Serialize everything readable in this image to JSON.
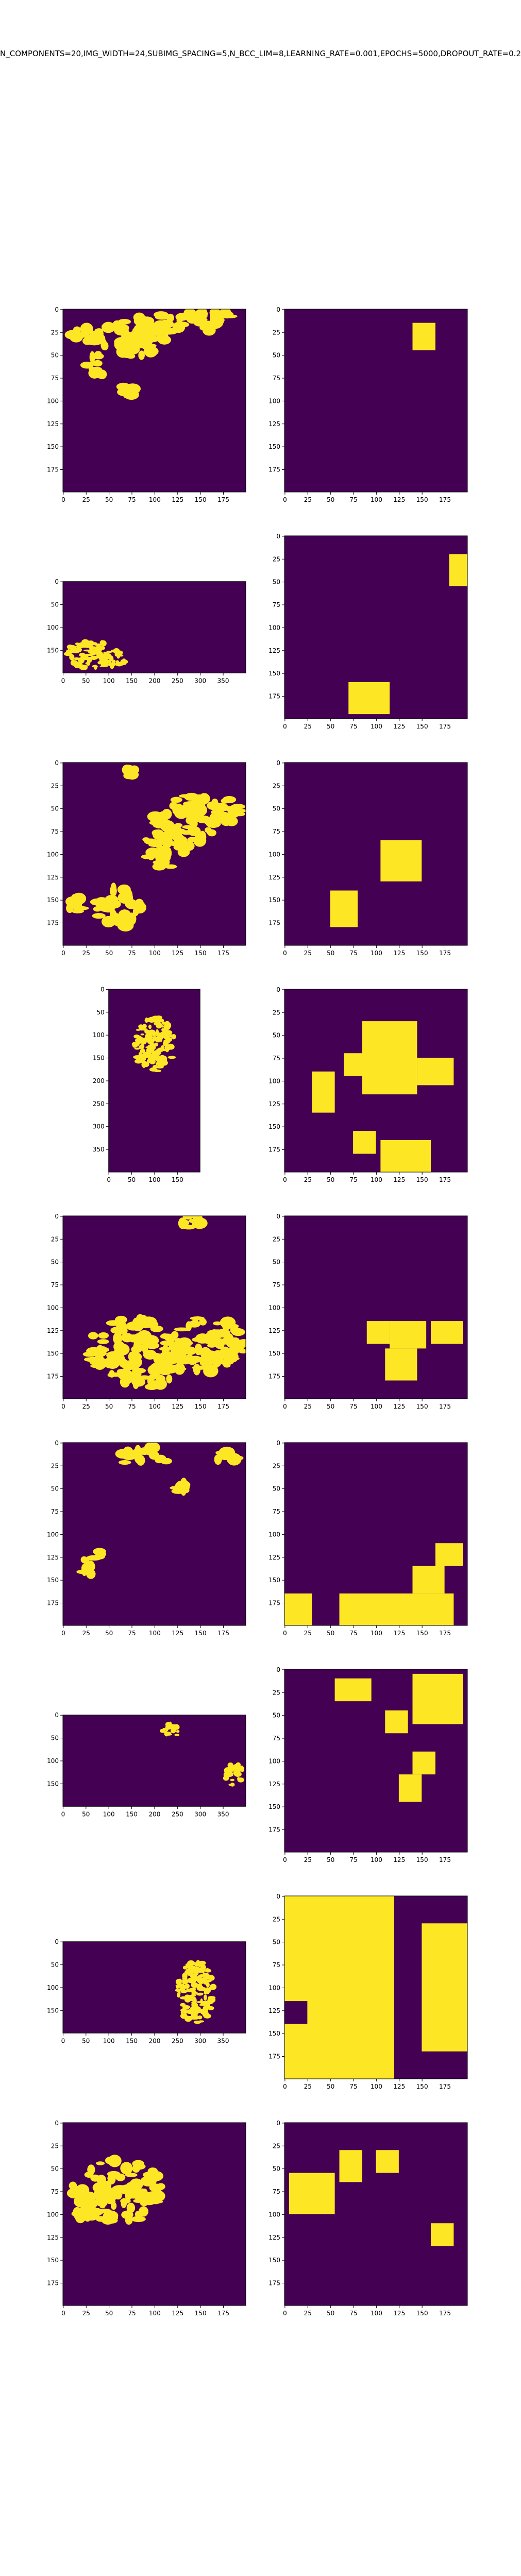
{
  "figure": {
    "title": "N_COMPONENTS=20,IMG_WIDTH=24,SUBIMG_SPACING=5,N_BCC_LIM=8,LEARNING_RATE=0.001,EPOCHS=5000,DROPOUT_RATE=0.2"
  },
  "colors": {
    "background": "#440154",
    "foreground": "#fde725"
  },
  "chart_data": [
    {
      "type": "heatmap",
      "panel": "row1-left",
      "x_ticks": [
        0,
        25,
        50,
        75,
        100,
        125,
        150,
        175
      ],
      "y_ticks": [
        0,
        25,
        50,
        75,
        100,
        125,
        150,
        175
      ],
      "xlim": [
        0,
        199
      ],
      "ylim": [
        199,
        0
      ],
      "blobs": [
        [
          60,
          30,
          55,
          14
        ],
        [
          120,
          15,
          60,
          12
        ],
        [
          160,
          10,
          30,
          10
        ],
        [
          40,
          60,
          14,
          12
        ],
        [
          80,
          45,
          20,
          10
        ],
        [
          70,
          90,
          10,
          6
        ]
      ]
    },
    {
      "type": "heatmap",
      "panel": "row1-right",
      "x_ticks": [
        0,
        25,
        50,
        75,
        100,
        125,
        150,
        175
      ],
      "y_ticks": [
        0,
        25,
        50,
        75,
        100,
        125,
        150,
        175
      ],
      "xlim": [
        0,
        199
      ],
      "ylim": [
        199,
        0
      ],
      "rects": [
        [
          140,
          15,
          25,
          30
        ]
      ]
    },
    {
      "type": "heatmap",
      "panel": "row2-left",
      "x_ticks": [
        0,
        50,
        100,
        150,
        200,
        250,
        300,
        350
      ],
      "y_ticks": [
        0,
        50,
        100,
        150
      ],
      "xlim": [
        0,
        399
      ],
      "ylim": [
        199,
        0
      ],
      "blobs": [
        [
          60,
          160,
          55,
          30
        ],
        [
          110,
          170,
          25,
          20
        ]
      ]
    },
    {
      "type": "heatmap",
      "panel": "row2-right",
      "x_ticks": [
        0,
        25,
        50,
        75,
        100,
        125,
        150,
        175
      ],
      "y_ticks": [
        0,
        25,
        50,
        75,
        100,
        125,
        150,
        175
      ],
      "xlim": [
        0,
        199
      ],
      "ylim": [
        199,
        0
      ],
      "rects": [
        [
          180,
          20,
          20,
          35
        ],
        [
          70,
          160,
          45,
          35
        ]
      ]
    },
    {
      "type": "heatmap",
      "panel": "row3-left",
      "x_ticks": [
        0,
        25,
        50,
        75,
        100,
        125,
        150,
        175
      ],
      "y_ticks": [
        0,
        25,
        50,
        75,
        100,
        125,
        150,
        175
      ],
      "xlim": [
        0,
        199
      ],
      "ylim": [
        199,
        0
      ],
      "blobs": [
        [
          140,
          65,
          40,
          30
        ],
        [
          110,
          95,
          25,
          20
        ],
        [
          180,
          50,
          15,
          15
        ],
        [
          60,
          160,
          25,
          25
        ],
        [
          15,
          155,
          12,
          8
        ],
        [
          75,
          10,
          6,
          5
        ]
      ]
    },
    {
      "type": "heatmap",
      "panel": "row3-right",
      "x_ticks": [
        0,
        25,
        50,
        75,
        100,
        125,
        150,
        175
      ],
      "y_ticks": [
        0,
        25,
        50,
        75,
        100,
        125,
        150,
        175
      ],
      "xlim": [
        0,
        199
      ],
      "ylim": [
        199,
        0
      ],
      "rects": [
        [
          105,
          85,
          45,
          45
        ],
        [
          50,
          140,
          30,
          40
        ]
      ]
    },
    {
      "type": "heatmap",
      "panel": "row4-left",
      "x_ticks": [
        0,
        50,
        100,
        150
      ],
      "y_ticks": [
        0,
        50,
        100,
        150,
        200,
        250,
        300,
        350
      ],
      "xlim": [
        0,
        199
      ],
      "ylim": [
        399,
        0
      ],
      "blobs": [
        [
          100,
          120,
          45,
          60
        ]
      ]
    },
    {
      "type": "heatmap",
      "panel": "row4-right",
      "x_ticks": [
        0,
        25,
        50,
        75,
        100,
        125,
        150,
        175
      ],
      "y_ticks": [
        0,
        25,
        50,
        75,
        100,
        125,
        150,
        175
      ],
      "xlim": [
        0,
        199
      ],
      "ylim": [
        199,
        0
      ],
      "rects": [
        [
          85,
          35,
          60,
          80
        ],
        [
          30,
          90,
          25,
          45
        ],
        [
          65,
          70,
          25,
          25
        ],
        [
          145,
          75,
          40,
          30
        ],
        [
          75,
          155,
          25,
          25
        ],
        [
          105,
          165,
          55,
          35
        ]
      ]
    },
    {
      "type": "heatmap",
      "panel": "row5-left",
      "x_ticks": [
        0,
        25,
        50,
        75,
        100,
        125,
        150,
        175
      ],
      "y_ticks": [
        0,
        25,
        50,
        75,
        100,
        125,
        150,
        175
      ],
      "xlim": [
        0,
        199
      ],
      "ylim": [
        199,
        0
      ],
      "blobs": [
        [
          80,
          150,
          55,
          40
        ],
        [
          160,
          140,
          40,
          30
        ],
        [
          140,
          5,
          12,
          8
        ]
      ]
    },
    {
      "type": "heatmap",
      "panel": "row5-right",
      "x_ticks": [
        0,
        25,
        50,
        75,
        100,
        125,
        150,
        175
      ],
      "y_ticks": [
        0,
        25,
        50,
        75,
        100,
        125,
        150,
        175
      ],
      "xlim": [
        0,
        199
      ],
      "ylim": [
        199,
        0
      ],
      "rects": [
        [
          90,
          115,
          25,
          25
        ],
        [
          115,
          115,
          40,
          30
        ],
        [
          160,
          115,
          35,
          25
        ],
        [
          110,
          145,
          35,
          35
        ]
      ]
    },
    {
      "type": "heatmap",
      "panel": "row6-left",
      "x_ticks": [
        0,
        25,
        50,
        75,
        100,
        125,
        150,
        175
      ],
      "y_ticks": [
        0,
        25,
        50,
        75,
        100,
        125,
        150,
        175
      ],
      "xlim": [
        0,
        199
      ],
      "ylim": [
        199,
        0
      ],
      "blobs": [
        [
          90,
          15,
          30,
          10
        ],
        [
          180,
          20,
          15,
          10
        ],
        [
          130,
          50,
          6,
          6
        ],
        [
          30,
          130,
          15,
          15
        ]
      ]
    },
    {
      "type": "heatmap",
      "panel": "row6-right",
      "x_ticks": [
        0,
        25,
        50,
        75,
        100,
        125,
        150,
        175
      ],
      "y_ticks": [
        0,
        25,
        50,
        75,
        100,
        125,
        150,
        175
      ],
      "xlim": [
        0,
        199
      ],
      "ylim": [
        199,
        0
      ],
      "rects": [
        [
          0,
          165,
          30,
          35
        ],
        [
          60,
          165,
          125,
          35
        ],
        [
          140,
          135,
          35,
          30
        ],
        [
          165,
          110,
          30,
          25
        ]
      ]
    },
    {
      "type": "heatmap",
      "panel": "row7-left",
      "x_ticks": [
        0,
        50,
        100,
        150,
        200,
        250,
        300,
        350
      ],
      "y_ticks": [
        0,
        50,
        100,
        150
      ],
      "xlim": [
        0,
        399
      ],
      "ylim": [
        199,
        0
      ],
      "blobs": [
        [
          240,
          30,
          25,
          15
        ],
        [
          375,
          130,
          20,
          25
        ]
      ]
    },
    {
      "type": "heatmap",
      "panel": "row7-right",
      "x_ticks": [
        0,
        25,
        50,
        75,
        100,
        125,
        150,
        175
      ],
      "y_ticks": [
        0,
        25,
        50,
        75,
        100,
        125,
        150,
        175
      ],
      "xlim": [
        0,
        199
      ],
      "ylim": [
        199,
        0
      ],
      "rects": [
        [
          55,
          10,
          40,
          25
        ],
        [
          140,
          5,
          55,
          55
        ],
        [
          110,
          45,
          25,
          25
        ],
        [
          140,
          90,
          25,
          25
        ],
        [
          125,
          115,
          25,
          30
        ]
      ]
    },
    {
      "type": "heatmap",
      "panel": "row8-left",
      "x_ticks": [
        0,
        50,
        100,
        150,
        200,
        250,
        300,
        350
      ],
      "y_ticks": [
        0,
        50,
        100,
        150
      ],
      "xlim": [
        0,
        399
      ],
      "ylim": [
        199,
        0
      ],
      "blobs": [
        [
          290,
          110,
          40,
          70
        ]
      ]
    },
    {
      "type": "heatmap",
      "panel": "row8-right",
      "x_ticks": [
        0,
        25,
        50,
        75,
        100,
        125,
        150,
        175
      ],
      "y_ticks": [
        0,
        25,
        50,
        75,
        100,
        125,
        150,
        175
      ],
      "xlim": [
        0,
        199
      ],
      "ylim": [
        199,
        0
      ],
      "rects": [
        [
          0,
          0,
          120,
          200
        ],
        [
          0,
          0,
          10,
          120
        ],
        [
          150,
          30,
          50,
          140
        ]
      ],
      "holes": [
        [
          0,
          115,
          25,
          25
        ],
        [
          120,
          0,
          30,
          200
        ]
      ]
    },
    {
      "type": "heatmap",
      "panel": "row9-left",
      "x_ticks": [
        0,
        25,
        50,
        75,
        100,
        125,
        150,
        175
      ],
      "y_ticks": [
        0,
        25,
        50,
        75,
        100,
        125,
        150,
        175
      ],
      "xlim": [
        0,
        199
      ],
      "ylim": [
        199,
        0
      ],
      "blobs": [
        [
          60,
          75,
          50,
          35
        ],
        [
          20,
          100,
          10,
          6
        ]
      ]
    },
    {
      "type": "heatmap",
      "panel": "row9-right",
      "x_ticks": [
        0,
        25,
        50,
        75,
        100,
        125,
        150,
        175
      ],
      "y_ticks": [
        0,
        25,
        50,
        75,
        100,
        125,
        150,
        175
      ],
      "xlim": [
        0,
        199
      ],
      "ylim": [
        199,
        0
      ],
      "rects": [
        [
          5,
          55,
          50,
          45
        ],
        [
          60,
          30,
          25,
          35
        ],
        [
          100,
          30,
          25,
          25
        ],
        [
          160,
          110,
          25,
          25
        ]
      ]
    }
  ]
}
